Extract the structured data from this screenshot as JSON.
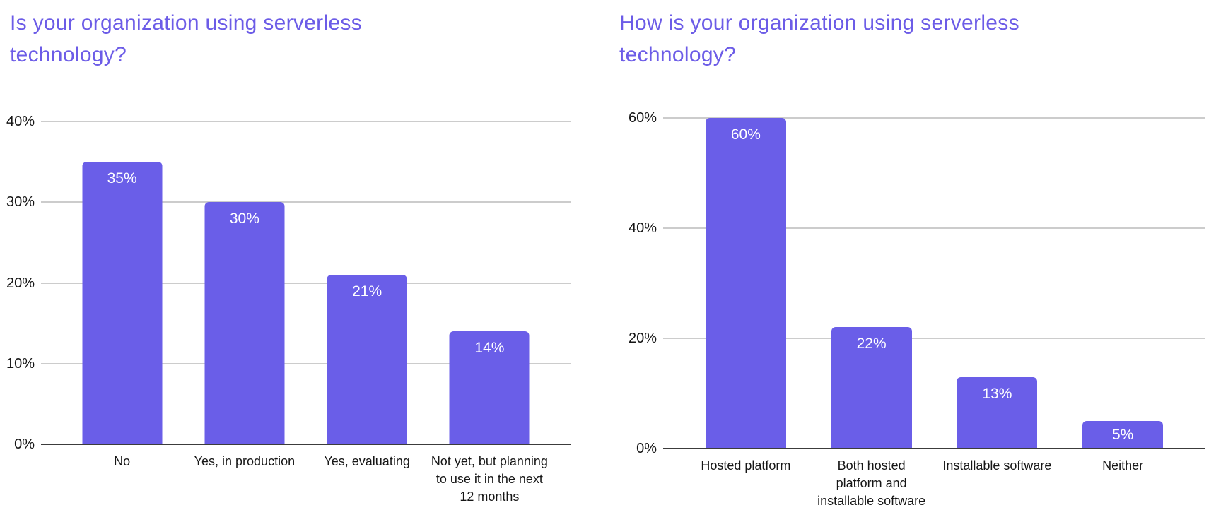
{
  "page": {
    "background": "#ffffff",
    "description": "Two side-by-side bar charts about serverless technology adoption"
  },
  "style": {
    "title_color": "#6C5CE7",
    "bar_color": "#6A5EE8",
    "grid_color": "#cccccc",
    "axis_line_color": "#3c3c3c",
    "axis_label_color": "#161616",
    "value_label_color": "#ffffff"
  },
  "chart_data": [
    {
      "type": "bar",
      "title": "Is your organization using serverless technology?",
      "title_lines": [
        "Is your organization using serverless",
        "technology?"
      ],
      "categories": [
        "No",
        "Yes, in production",
        "Yes, evaluating",
        "Not yet, but planning to use it in the next 12 months"
      ],
      "category_label_lines": [
        [
          "No"
        ],
        [
          "Yes, in production"
        ],
        [
          "Yes, evaluating"
        ],
        [
          "Not yet, but planning",
          "to use it in the next",
          "12 months"
        ]
      ],
      "values": [
        35,
        30,
        21,
        14
      ],
      "value_labels": [
        "35%",
        "30%",
        "21%",
        "14%"
      ],
      "xlabel": "",
      "ylabel": "",
      "ylim": [
        0,
        40
      ],
      "yticks": [
        0,
        10,
        20,
        30,
        40
      ],
      "ytick_labels": [
        "0%",
        "10%",
        "20%",
        "30%",
        "40%"
      ],
      "grid": true,
      "legend": "none",
      "unit": "percent"
    },
    {
      "type": "bar",
      "title": "How is your organization using serverless technology?",
      "title_lines": [
        "How is your organization using serverless",
        "technology?"
      ],
      "categories": [
        "Hosted platform",
        "Both hosted platform and installable software",
        "Installable software",
        "Neither"
      ],
      "category_label_lines": [
        [
          "Hosted platform"
        ],
        [
          "Both hosted",
          "platform and",
          "installable software"
        ],
        [
          "Installable software"
        ],
        [
          "Neither"
        ]
      ],
      "values": [
        60,
        22,
        13,
        5
      ],
      "value_labels": [
        "60%",
        "22%",
        "13%",
        "5%"
      ],
      "xlabel": "",
      "ylabel": "",
      "ylim": [
        0,
        60
      ],
      "yticks": [
        0,
        20,
        40,
        60
      ],
      "ytick_labels": [
        "0%",
        "20%",
        "40%",
        "60%"
      ],
      "grid": true,
      "legend": "none",
      "unit": "percent"
    }
  ]
}
